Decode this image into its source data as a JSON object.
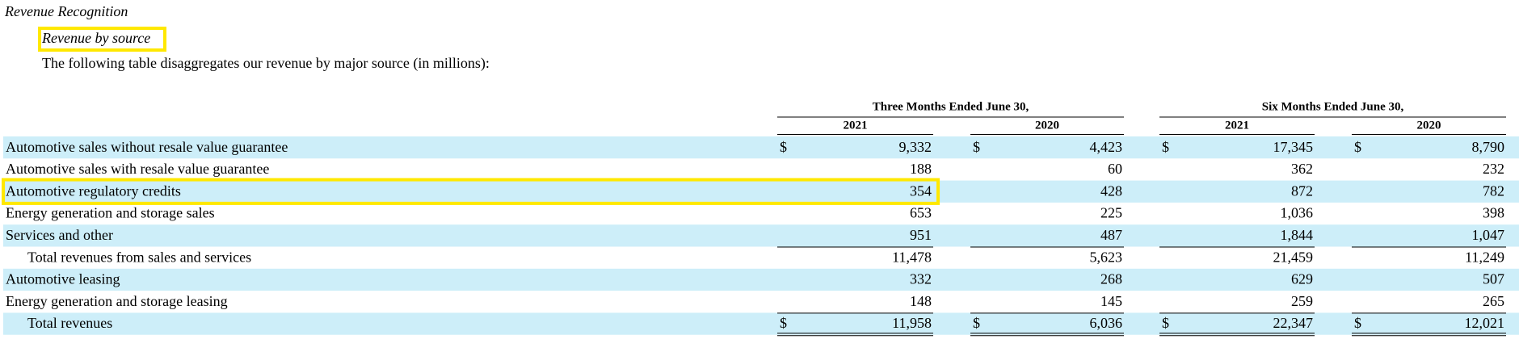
{
  "section_title": "Revenue Recognition",
  "subsection_title": "Revenue by source",
  "description": "The following table disaggregates our revenue by major source (in millions):",
  "table": {
    "group_headers": [
      "Three Months Ended June 30,",
      "Six Months Ended June 30,"
    ],
    "year_headers": [
      "2021",
      "2020",
      "2021",
      "2020"
    ],
    "currency": "$",
    "rows": [
      {
        "label": "Automotive sales without resale value guarantee",
        "cells": [
          "9,332",
          "4,423",
          "17,345",
          "8,790"
        ],
        "show_currency": true
      },
      {
        "label": "Automotive sales with resale value guarantee",
        "cells": [
          "188",
          "60",
          "362",
          "232"
        ]
      },
      {
        "label": "Automotive regulatory credits",
        "cells": [
          "354",
          "428",
          "872",
          "782"
        ]
      },
      {
        "label": "Energy generation and storage sales",
        "cells": [
          "653",
          "225",
          "1,036",
          "398"
        ]
      },
      {
        "label": "Services and other",
        "cells": [
          "951",
          "487",
          "1,844",
          "1,047"
        ]
      },
      {
        "label": "Total revenues from sales and services",
        "cells": [
          "11,478",
          "5,623",
          "21,459",
          "11,249"
        ],
        "style": "subtotal"
      },
      {
        "label": "Automotive leasing",
        "cells": [
          "332",
          "268",
          "629",
          "507"
        ]
      },
      {
        "label": "Energy generation and storage leasing",
        "cells": [
          "148",
          "145",
          "259",
          "265"
        ]
      },
      {
        "label": "Total revenues",
        "cells": [
          "11,958",
          "6,036",
          "22,347",
          "12,021"
        ],
        "show_currency": true,
        "style": "total"
      }
    ]
  }
}
